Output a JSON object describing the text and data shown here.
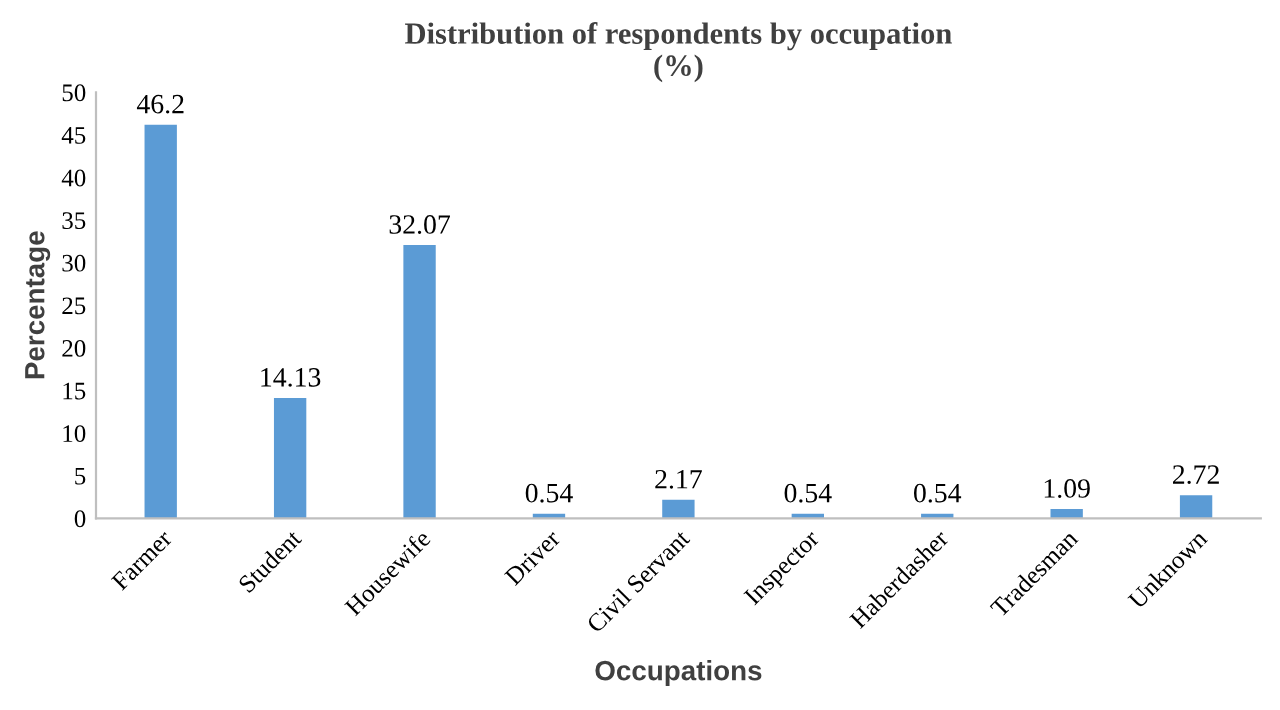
{
  "chart_data": {
    "type": "bar",
    "title": "Distribution of respondents by occupation\n(%)",
    "xlabel": "Occupations",
    "ylabel": "Percentage",
    "categories": [
      "Farmer",
      "Student",
      "Housewife",
      "Driver",
      "Civil Servant",
      "Inspector",
      "Haberdasher",
      "Tradesman",
      "Unknown"
    ],
    "values": [
      46.2,
      14.13,
      32.07,
      0.54,
      2.17,
      0.54,
      0.54,
      1.09,
      2.72
    ],
    "color": "#5b9bd5",
    "ylim": [
      0,
      50
    ],
    "yticks": [
      0,
      5,
      10,
      15,
      20,
      25,
      30,
      35,
      40,
      45,
      50
    ],
    "data_labels": true,
    "grid": false
  }
}
